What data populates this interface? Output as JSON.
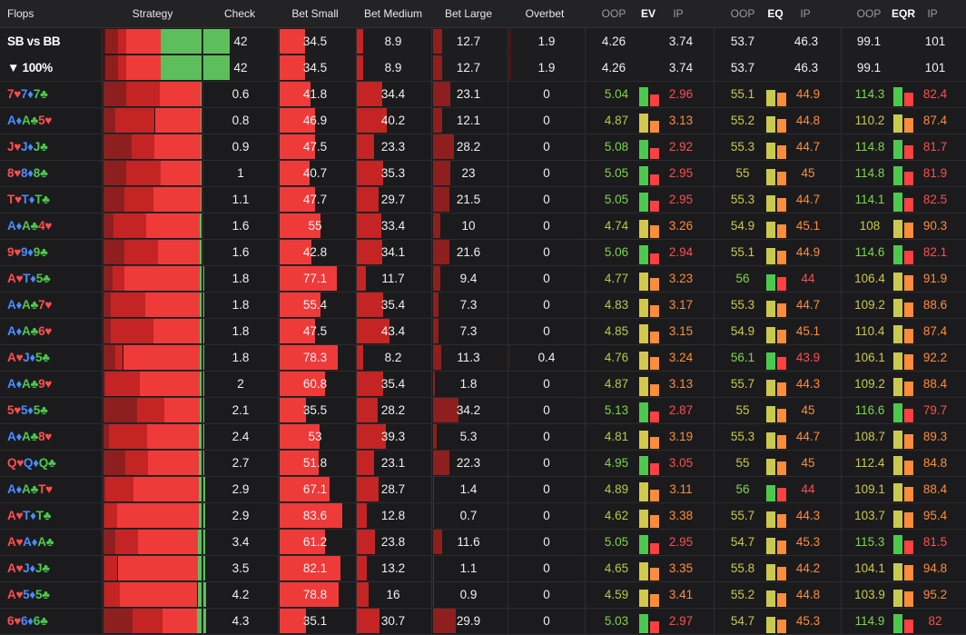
{
  "header": {
    "flops": "Flops",
    "strategy": "Strategy",
    "check": "Check",
    "bet_small": "Bet Small",
    "bet_medium": "Bet Medium",
    "bet_large": "Bet Large",
    "overbet": "Overbet",
    "oop": "OOP",
    "ev": "EV",
    "ip": "IP",
    "eq": "EQ",
    "eqr": "EQR"
  },
  "summary_rows": [
    {
      "label": "SB vs BB",
      "check": "42",
      "bs": "34.5",
      "bm": "8.9",
      "bl": "12.7",
      "ob": "1.9",
      "ev_oop": "4.26",
      "ev_ip": "3.74",
      "eq_oop": "53.7",
      "eq_ip": "46.3",
      "eqr_oop": "99.1",
      "eqr_ip": "101"
    },
    {
      "label": "▼ 100%",
      "check": "42",
      "bs": "34.5",
      "bm": "8.9",
      "bl": "12.7",
      "ob": "1.9",
      "ev_oop": "4.26",
      "ev_ip": "3.74",
      "eq_oop": "53.7",
      "eq_ip": "46.3",
      "eqr_oop": "99.1",
      "eqr_ip": "101"
    }
  ],
  "rows": [
    {
      "flop": [
        [
          "7♥",
          "r"
        ],
        [
          "7♦",
          "b"
        ],
        [
          "7♣",
          "g"
        ]
      ],
      "check": "0.6",
      "bs": "41.8",
      "bm": "34.4",
      "bl": "23.1",
      "ob": "0",
      "ev_oop": "5.04",
      "ev_ip": "2.96",
      "eq_oop": "55.1",
      "eq_ip": "44.9",
      "eqr_oop": "114.3",
      "eqr_ip": "82.4"
    },
    {
      "flop": [
        [
          "A♦",
          "b"
        ],
        [
          "A♣",
          "g"
        ],
        [
          "5♥",
          "r"
        ]
      ],
      "check": "0.8",
      "bs": "46.9",
      "bm": "40.2",
      "bl": "12.1",
      "ob": "0",
      "ev_oop": "4.87",
      "ev_ip": "3.13",
      "eq_oop": "55.2",
      "eq_ip": "44.8",
      "eqr_oop": "110.2",
      "eqr_ip": "87.4"
    },
    {
      "flop": [
        [
          "J♥",
          "r"
        ],
        [
          "J♦",
          "b"
        ],
        [
          "J♣",
          "g"
        ]
      ],
      "check": "0.9",
      "bs": "47.5",
      "bm": "23.3",
      "bl": "28.2",
      "ob": "0",
      "ev_oop": "5.08",
      "ev_ip": "2.92",
      "eq_oop": "55.3",
      "eq_ip": "44.7",
      "eqr_oop": "114.8",
      "eqr_ip": "81.7"
    },
    {
      "flop": [
        [
          "8♥",
          "r"
        ],
        [
          "8♦",
          "b"
        ],
        [
          "8♣",
          "g"
        ]
      ],
      "check": "1",
      "bs": "40.7",
      "bm": "35.3",
      "bl": "23",
      "ob": "0",
      "ev_oop": "5.05",
      "ev_ip": "2.95",
      "eq_oop": "55",
      "eq_ip": "45",
      "eqr_oop": "114.8",
      "eqr_ip": "81.9"
    },
    {
      "flop": [
        [
          "T♥",
          "r"
        ],
        [
          "T♦",
          "b"
        ],
        [
          "T♣",
          "g"
        ]
      ],
      "check": "1.1",
      "bs": "47.7",
      "bm": "29.7",
      "bl": "21.5",
      "ob": "0",
      "ev_oop": "5.05",
      "ev_ip": "2.95",
      "eq_oop": "55.3",
      "eq_ip": "44.7",
      "eqr_oop": "114.1",
      "eqr_ip": "82.5"
    },
    {
      "flop": [
        [
          "A♦",
          "b"
        ],
        [
          "A♣",
          "g"
        ],
        [
          "4♥",
          "r"
        ]
      ],
      "check": "1.6",
      "bs": "55",
      "bm": "33.4",
      "bl": "10",
      "ob": "0",
      "ev_oop": "4.74",
      "ev_ip": "3.26",
      "eq_oop": "54.9",
      "eq_ip": "45.1",
      "eqr_oop": "108",
      "eqr_ip": "90.3"
    },
    {
      "flop": [
        [
          "9♥",
          "r"
        ],
        [
          "9♦",
          "b"
        ],
        [
          "9♣",
          "g"
        ]
      ],
      "check": "1.6",
      "bs": "42.8",
      "bm": "34.1",
      "bl": "21.6",
      "ob": "0",
      "ev_oop": "5.06",
      "ev_ip": "2.94",
      "eq_oop": "55.1",
      "eq_ip": "44.9",
      "eqr_oop": "114.6",
      "eqr_ip": "82.1"
    },
    {
      "flop": [
        [
          "A♥",
          "r"
        ],
        [
          "T♦",
          "b"
        ],
        [
          "5♣",
          "g"
        ]
      ],
      "check": "1.8",
      "bs": "77.1",
      "bm": "11.7",
      "bl": "9.4",
      "ob": "0",
      "ev_oop": "4.77",
      "ev_ip": "3.23",
      "eq_oop": "56",
      "eq_ip": "44",
      "eqr_oop": "106.4",
      "eqr_ip": "91.9"
    },
    {
      "flop": [
        [
          "A♦",
          "b"
        ],
        [
          "A♣",
          "g"
        ],
        [
          "7♥",
          "r"
        ]
      ],
      "check": "1.8",
      "bs": "55.4",
      "bm": "35.4",
      "bl": "7.3",
      "ob": "0",
      "ev_oop": "4.83",
      "ev_ip": "3.17",
      "eq_oop": "55.3",
      "eq_ip": "44.7",
      "eqr_oop": "109.2",
      "eqr_ip": "88.6"
    },
    {
      "flop": [
        [
          "A♦",
          "b"
        ],
        [
          "A♣",
          "g"
        ],
        [
          "6♥",
          "r"
        ]
      ],
      "check": "1.8",
      "bs": "47.5",
      "bm": "43.4",
      "bl": "7.3",
      "ob": "0",
      "ev_oop": "4.85",
      "ev_ip": "3.15",
      "eq_oop": "54.9",
      "eq_ip": "45.1",
      "eqr_oop": "110.4",
      "eqr_ip": "87.4"
    },
    {
      "flop": [
        [
          "A♥",
          "r"
        ],
        [
          "J♦",
          "b"
        ],
        [
          "5♣",
          "g"
        ]
      ],
      "check": "1.8",
      "bs": "78.3",
      "bm": "8.2",
      "bl": "11.3",
      "ob": "0.4",
      "ev_oop": "4.76",
      "ev_ip": "3.24",
      "eq_oop": "56.1",
      "eq_ip": "43.9",
      "eqr_oop": "106.1",
      "eqr_ip": "92.2"
    },
    {
      "flop": [
        [
          "A♦",
          "b"
        ],
        [
          "A♣",
          "g"
        ],
        [
          "9♥",
          "r"
        ]
      ],
      "check": "2",
      "bs": "60.8",
      "bm": "35.4",
      "bl": "1.8",
      "ob": "0",
      "ev_oop": "4.87",
      "ev_ip": "3.13",
      "eq_oop": "55.7",
      "eq_ip": "44.3",
      "eqr_oop": "109.2",
      "eqr_ip": "88.4"
    },
    {
      "flop": [
        [
          "5♥",
          "r"
        ],
        [
          "5♦",
          "b"
        ],
        [
          "5♣",
          "g"
        ]
      ],
      "check": "2.1",
      "bs": "35.5",
      "bm": "28.2",
      "bl": "34.2",
      "ob": "0",
      "ev_oop": "5.13",
      "ev_ip": "2.87",
      "eq_oop": "55",
      "eq_ip": "45",
      "eqr_oop": "116.6",
      "eqr_ip": "79.7"
    },
    {
      "flop": [
        [
          "A♦",
          "b"
        ],
        [
          "A♣",
          "g"
        ],
        [
          "8♥",
          "r"
        ]
      ],
      "check": "2.4",
      "bs": "53",
      "bm": "39.3",
      "bl": "5.3",
      "ob": "0",
      "ev_oop": "4.81",
      "ev_ip": "3.19",
      "eq_oop": "55.3",
      "eq_ip": "44.7",
      "eqr_oop": "108.7",
      "eqr_ip": "89.3"
    },
    {
      "flop": [
        [
          "Q♥",
          "r"
        ],
        [
          "Q♦",
          "b"
        ],
        [
          "Q♣",
          "g"
        ]
      ],
      "check": "2.7",
      "bs": "51.8",
      "bm": "23.1",
      "bl": "22.3",
      "ob": "0",
      "ev_oop": "4.95",
      "ev_ip": "3.05",
      "eq_oop": "55",
      "eq_ip": "45",
      "eqr_oop": "112.4",
      "eqr_ip": "84.8"
    },
    {
      "flop": [
        [
          "A♦",
          "b"
        ],
        [
          "A♣",
          "g"
        ],
        [
          "T♥",
          "r"
        ]
      ],
      "check": "2.9",
      "bs": "67.1",
      "bm": "28.7",
      "bl": "1.4",
      "ob": "0",
      "ev_oop": "4.89",
      "ev_ip": "3.11",
      "eq_oop": "56",
      "eq_ip": "44",
      "eqr_oop": "109.1",
      "eqr_ip": "88.4"
    },
    {
      "flop": [
        [
          "A♥",
          "r"
        ],
        [
          "T♦",
          "b"
        ],
        [
          "T♣",
          "g"
        ]
      ],
      "check": "2.9",
      "bs": "83.6",
      "bm": "12.8",
      "bl": "0.7",
      "ob": "0",
      "ev_oop": "4.62",
      "ev_ip": "3.38",
      "eq_oop": "55.7",
      "eq_ip": "44.3",
      "eqr_oop": "103.7",
      "eqr_ip": "95.4"
    },
    {
      "flop": [
        [
          "A♥",
          "r"
        ],
        [
          "A♦",
          "b"
        ],
        [
          "A♣",
          "g"
        ]
      ],
      "check": "3.4",
      "bs": "61.2",
      "bm": "23.8",
      "bl": "11.6",
      "ob": "0",
      "ev_oop": "5.05",
      "ev_ip": "2.95",
      "eq_oop": "54.7",
      "eq_ip": "45.3",
      "eqr_oop": "115.3",
      "eqr_ip": "81.5"
    },
    {
      "flop": [
        [
          "A♥",
          "r"
        ],
        [
          "J♦",
          "b"
        ],
        [
          "J♣",
          "g"
        ]
      ],
      "check": "3.5",
      "bs": "82.1",
      "bm": "13.2",
      "bl": "1.1",
      "ob": "0",
      "ev_oop": "4.65",
      "ev_ip": "3.35",
      "eq_oop": "55.8",
      "eq_ip": "44.2",
      "eqr_oop": "104.1",
      "eqr_ip": "94.8"
    },
    {
      "flop": [
        [
          "A♥",
          "r"
        ],
        [
          "5♦",
          "b"
        ],
        [
          "5♣",
          "g"
        ]
      ],
      "check": "4.2",
      "bs": "78.8",
      "bm": "16",
      "bl": "0.9",
      "ob": "0",
      "ev_oop": "4.59",
      "ev_ip": "3.41",
      "eq_oop": "55.2",
      "eq_ip": "44.8",
      "eqr_oop": "103.9",
      "eqr_ip": "95.2"
    },
    {
      "flop": [
        [
          "6♥",
          "r"
        ],
        [
          "6♦",
          "b"
        ],
        [
          "6♣",
          "g"
        ]
      ],
      "check": "4.3",
      "bs": "35.1",
      "bm": "30.7",
      "bl": "29.9",
      "ob": "0",
      "ev_oop": "5.03",
      "ev_ip": "2.97",
      "eq_oop": "54.7",
      "eq_ip": "45.3",
      "eqr_oop": "114.9",
      "eqr_ip": "82"
    }
  ],
  "colors": {
    "check_green": "#5cbf5c",
    "bet_small_red": "#ef3a3a",
    "bet_medium_red": "#c42424",
    "bet_large_red": "#8e1f1f",
    "overbet_red": "#5a1010",
    "oop_green": "#8ae04a",
    "ev_green": "#4cc94c",
    "ip_red": "#ff4040",
    "eq_yellow": "#c9c950",
    "eq_orange": "#ff8c3a"
  }
}
